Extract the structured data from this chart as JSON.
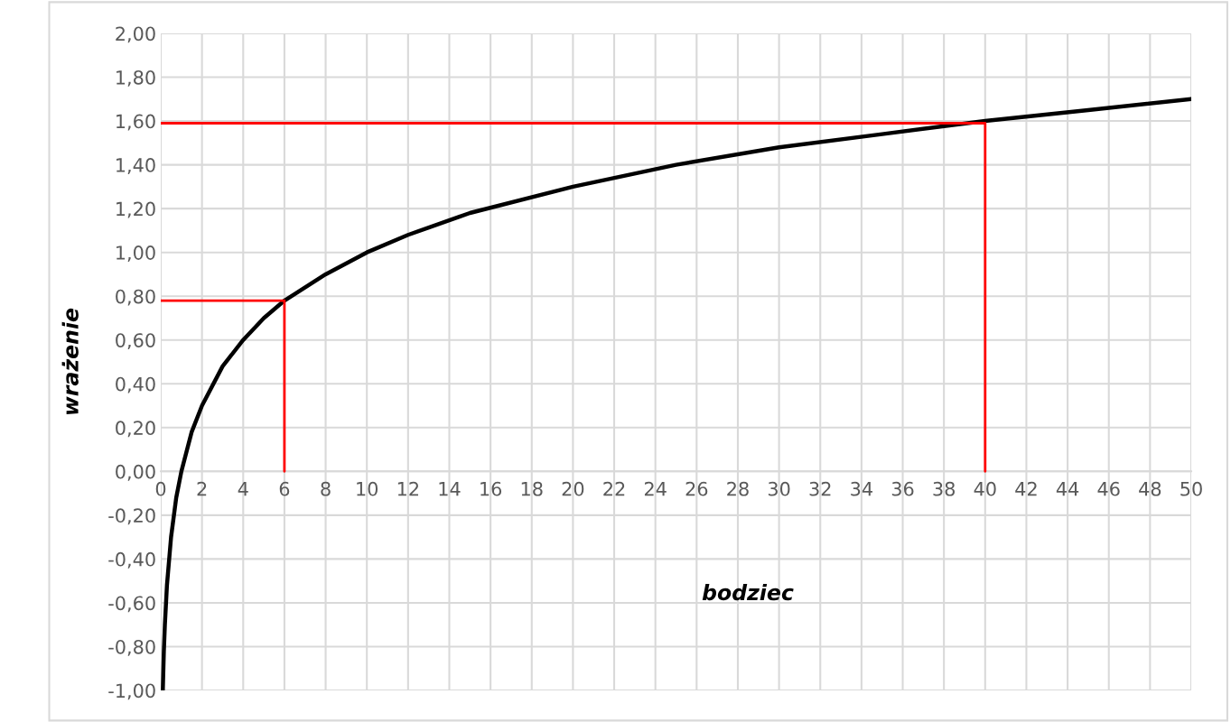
{
  "chart_data": {
    "type": "line",
    "xlabel": "bodziec",
    "ylabel": "wrażenie",
    "series": [
      {
        "color": "#000000",
        "x": [
          0.1,
          0.15,
          0.2,
          0.3,
          0.5,
          0.75,
          1,
          1.5,
          2,
          3,
          4,
          5,
          6,
          8,
          10,
          12,
          15,
          20,
          25,
          30,
          35,
          40,
          45,
          50
        ],
        "values": [
          -1.0,
          -0.82,
          -0.7,
          -0.52,
          -0.3,
          -0.12,
          0.0,
          0.18,
          0.3,
          0.48,
          0.6,
          0.7,
          0.78,
          0.9,
          1.0,
          1.08,
          1.18,
          1.3,
          1.4,
          1.48,
          1.54,
          1.6,
          1.65,
          1.7
        ]
      },
      {
        "color": "#ff0000",
        "x": [
          0,
          6,
          6
        ],
        "values": [
          0.78,
          0.78,
          0
        ]
      },
      {
        "color": "#ff0000",
        "x": [
          0,
          40,
          40
        ],
        "values": [
          1.59,
          1.59,
          0
        ]
      }
    ],
    "xlim": [
      0,
      50
    ],
    "ylim": [
      -1,
      2
    ],
    "xticks": [
      0,
      2,
      4,
      6,
      8,
      10,
      12,
      14,
      16,
      18,
      20,
      22,
      24,
      26,
      28,
      30,
      32,
      34,
      36,
      38,
      40,
      42,
      44,
      46,
      48,
      50
    ],
    "yticks": [
      {
        "value": -1,
        "label": "-1,00"
      },
      {
        "value": -0.8,
        "label": "-0,80"
      },
      {
        "value": -0.6,
        "label": "-0,60"
      },
      {
        "value": -0.4,
        "label": "-0,40"
      },
      {
        "value": -0.2,
        "label": "-0,20"
      },
      {
        "value": 0,
        "label": "0,00"
      },
      {
        "value": 0.2,
        "label": "0,20"
      },
      {
        "value": 0.4,
        "label": "0,40"
      },
      {
        "value": 0.6,
        "label": "0,60"
      },
      {
        "value": 0.8,
        "label": "0,80"
      },
      {
        "value": 1,
        "label": "1,00"
      },
      {
        "value": 1.2,
        "label": "1,20"
      },
      {
        "value": 1.4,
        "label": "1,40"
      },
      {
        "value": 1.6,
        "label": "1,60"
      },
      {
        "value": 1.8,
        "label": "1,80"
      },
      {
        "value": 2,
        "label": "2,00"
      }
    ],
    "grid": true
  }
}
